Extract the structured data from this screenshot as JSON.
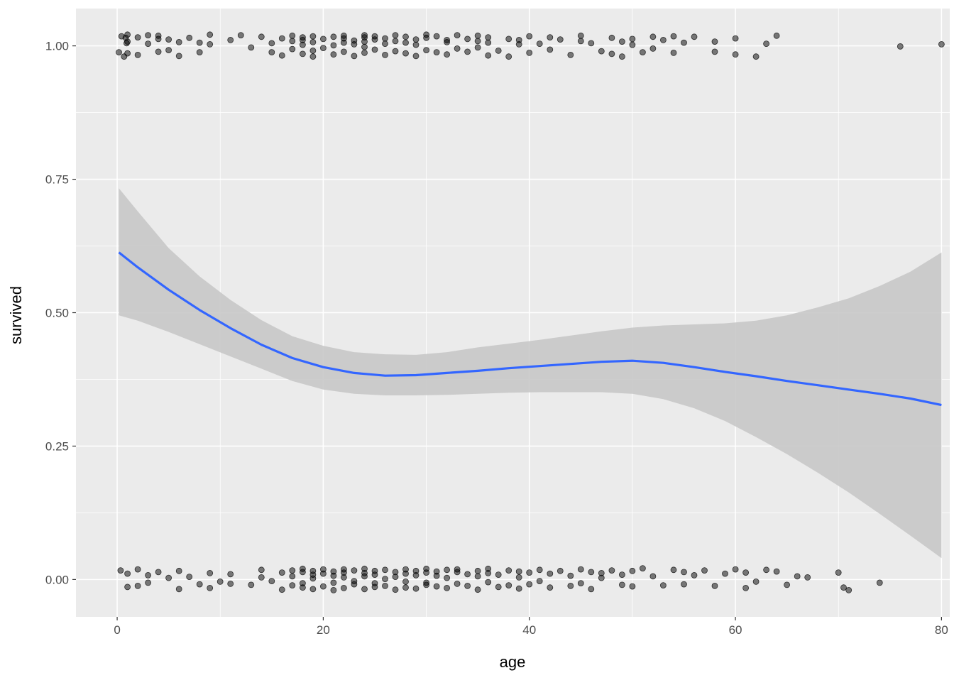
{
  "chart_data": {
    "type": "scatter",
    "title": "",
    "xlabel": "age",
    "ylabel": "survived",
    "xlim": [
      -4,
      80.8
    ],
    "ylim": [
      -0.07,
      1.07
    ],
    "x_ticks": [
      0,
      20,
      40,
      60,
      80
    ],
    "x_tick_labels": [
      "0",
      "20",
      "40",
      "60",
      "80"
    ],
    "y_ticks": [
      0,
      0.25,
      0.5,
      0.75,
      1
    ],
    "y_tick_labels": [
      "0.00",
      "0.25",
      "0.50",
      "0.75",
      "1.00"
    ],
    "grid": true,
    "legend": "none",
    "colors": {
      "panel_background": "#ebebeb",
      "grid": "#ffffff",
      "points": "#000000",
      "smooth_line": "#3366ff",
      "confidence_band": "#c8c8c8"
    },
    "points_survived_1": {
      "y": 1,
      "ages": [
        0.17,
        0.42,
        0.67,
        0.83,
        0.92,
        1,
        1,
        1,
        2,
        2,
        3,
        3,
        4,
        4,
        4,
        5,
        5,
        6,
        6,
        7,
        8,
        8,
        9,
        9,
        11,
        12,
        13,
        14,
        15,
        15,
        16,
        16,
        17,
        17,
        17,
        18,
        18,
        18,
        18,
        19,
        19,
        19,
        19,
        20,
        20,
        21,
        21,
        21,
        22,
        22,
        22,
        22,
        23,
        23,
        23,
        24,
        24,
        24,
        24,
        24,
        25,
        25,
        25,
        26,
        26,
        26,
        27,
        27,
        27,
        28,
        28,
        28,
        29,
        29,
        29,
        30,
        30,
        30,
        31,
        31,
        32,
        32,
        32,
        33,
        33,
        34,
        34,
        35,
        35,
        35,
        36,
        36,
        36,
        37,
        38,
        38,
        39,
        39,
        40,
        40,
        41,
        42,
        42,
        43,
        44,
        45,
        45,
        46,
        47,
        48,
        48,
        49,
        49,
        50,
        50,
        51,
        52,
        52,
        53,
        54,
        54,
        55,
        56,
        58,
        58,
        60,
        60,
        62,
        63,
        64,
        76,
        80
      ],
      "jitter": [
        -0.012,
        0.018,
        -0.02,
        0.015,
        0.005,
        0.021,
        -0.014,
        0.008,
        0.016,
        -0.017,
        0.004,
        0.02,
        -0.011,
        0.013,
        0.019,
        -0.008,
        0.012,
        0.007,
        -0.019,
        0.015,
        0.006,
        -0.012,
        0.021,
        0.003,
        0.011,
        0.02,
        -0.003,
        0.017,
        -0.012,
        0.005,
        0.014,
        -0.018,
        0.009,
        -0.006,
        0.019,
        0.016,
        -0.015,
        0.002,
        0.011,
        -0.009,
        0.018,
        0.007,
        -0.02,
        0.013,
        -0.004,
        0.017,
        0.001,
        -0.016,
        0.019,
        -0.011,
        0.006,
        0.014,
        -0.019,
        0.01,
        0.003,
        0.016,
        -0.013,
        0.008,
        -0.002,
        0.02,
        -0.007,
        0.012,
        0.018,
        0.004,
        -0.017,
        0.014,
        0.009,
        -0.01,
        0.02,
        -0.014,
        0.006,
        0.017,
        0.002,
        -0.019,
        0.012,
        0.015,
        -0.008,
        0.021,
        -0.012,
        0.018,
        0.007,
        -0.016,
        0.011,
        -0.005,
        0.02,
        0.013,
        -0.011,
        0.019,
        -0.003,
        0.009,
        -0.018,
        0.006,
        0.016,
        -0.009,
        0.013,
        -0.02,
        0.003,
        0.011,
        -0.013,
        0.018,
        0.004,
        -0.007,
        0.016,
        0.012,
        -0.017,
        0.009,
        0.019,
        0.005,
        -0.01,
        0.015,
        -0.015,
        0.008,
        -0.02,
        0.013,
        0.002,
        -0.012,
        0.017,
        -0.005,
        0.011,
        0.018,
        -0.013,
        0.006,
        0.017,
        -0.011,
        0.008,
        -0.016,
        0.014,
        -0.02,
        0.004,
        0.019,
        -0.001,
        0.003
      ]
    },
    "points_survived_0": {
      "y": 0,
      "ages": [
        0.33,
        1,
        1,
        2,
        2,
        3,
        3,
        4,
        5,
        6,
        6,
        7,
        8,
        9,
        9,
        10,
        11,
        11,
        13,
        14,
        14,
        15,
        16,
        16,
        17,
        17,
        17,
        18,
        18,
        18,
        18,
        19,
        19,
        19,
        19,
        20,
        20,
        20,
        21,
        21,
        21,
        21,
        22,
        22,
        22,
        22,
        23,
        23,
        23,
        24,
        24,
        24,
        24,
        25,
        25,
        25,
        25,
        26,
        26,
        26,
        27,
        27,
        27,
        28,
        28,
        28,
        28,
        29,
        29,
        29,
        30,
        30,
        30,
        30,
        31,
        31,
        31,
        32,
        32,
        32,
        33,
        33,
        33,
        34,
        34,
        35,
        35,
        35,
        36,
        36,
        36,
        37,
        37,
        38,
        38,
        39,
        39,
        39,
        40,
        40,
        41,
        41,
        42,
        42,
        43,
        44,
        44,
        45,
        45,
        46,
        46,
        47,
        47,
        48,
        49,
        49,
        50,
        50,
        51,
        52,
        53,
        54,
        55,
        55,
        56,
        57,
        58,
        59,
        60,
        61,
        61,
        62,
        63,
        64,
        65,
        66,
        67,
        70,
        70.5,
        71,
        74
      ],
      "jitter": [
        0.017,
        -0.014,
        0.011,
        0.019,
        -0.012,
        0.008,
        -0.006,
        0.014,
        0.003,
        0.016,
        -0.018,
        0.005,
        -0.009,
        0.012,
        -0.016,
        -0.004,
        0.01,
        -0.008,
        -0.01,
        0.004,
        0.018,
        -0.003,
        0.013,
        -0.019,
        0.017,
        -0.011,
        0.006,
        0.014,
        -0.007,
        0.02,
        -0.015,
        0.009,
        -0.018,
        0.002,
        0.016,
        -0.013,
        0.011,
        0.019,
        -0.006,
        0.015,
        -0.02,
        0.007,
        0.013,
        -0.016,
        0.004,
        0.019,
        -0.009,
        0.017,
        -0.003,
        0.012,
        -0.018,
        0.006,
        0.02,
        -0.014,
        0.009,
        0.016,
        -0.007,
        0.001,
        0.018,
        -0.012,
        0.014,
        -0.019,
        0.005,
        0.011,
        -0.015,
        0.019,
        -0.004,
        0.008,
        -0.017,
        0.016,
        0.013,
        -0.01,
        0.02,
        -0.006,
        0.015,
        -0.013,
        0.007,
        0.018,
        -0.016,
        0.003,
        -0.008,
        0.014,
        0.019,
        -0.012,
        0.01,
        0.016,
        -0.019,
        0.006,
        0.012,
        -0.005,
        0.02,
        -0.014,
        0.009,
        0.017,
        -0.011,
        0.015,
        -0.017,
        0.004,
        0.013,
        -0.009,
        0.018,
        -0.003,
        0.011,
        -0.015,
        0.016,
        0.007,
        -0.012,
        0.019,
        -0.007,
        0.014,
        -0.018,
        0.012,
        0.003,
        0.017,
        -0.01,
        0.009,
        0.016,
        -0.013,
        0.021,
        0.006,
        -0.011,
        0.018,
        -0.009,
        0.014,
        0.008,
        0.017,
        -0.012,
        0.011,
        0.019,
        -0.016,
        0.013,
        -0.004,
        0.018,
        0.015,
        -0.01,
        0.006,
        0.004,
        0.013,
        -0.015,
        -0.02,
        -0.006
      ]
    },
    "smooth_line": {
      "x": [
        0.17,
        2,
        5,
        8,
        11,
        14,
        17,
        20,
        23,
        26,
        29,
        32,
        35,
        38,
        41,
        44,
        47,
        50,
        53,
        56,
        59,
        62,
        65,
        68,
        71,
        74,
        77,
        80
      ],
      "y": [
        0.613,
        0.585,
        0.543,
        0.505,
        0.471,
        0.44,
        0.415,
        0.398,
        0.387,
        0.382,
        0.383,
        0.387,
        0.391,
        0.396,
        0.4,
        0.404,
        0.408,
        0.41,
        0.406,
        0.398,
        0.389,
        0.381,
        0.372,
        0.364,
        0.356,
        0.348,
        0.339,
        0.327
      ]
    },
    "confidence_band": {
      "x": [
        0.17,
        2,
        5,
        8,
        11,
        14,
        17,
        20,
        23,
        26,
        29,
        32,
        35,
        38,
        41,
        44,
        47,
        50,
        53,
        56,
        59,
        62,
        65,
        68,
        71,
        74,
        77,
        80
      ],
      "lower": [
        0.495,
        0.485,
        0.464,
        0.441,
        0.418,
        0.395,
        0.372,
        0.356,
        0.348,
        0.345,
        0.345,
        0.346,
        0.348,
        0.35,
        0.351,
        0.351,
        0.351,
        0.348,
        0.338,
        0.321,
        0.297,
        0.267,
        0.235,
        0.2,
        0.163,
        0.123,
        0.082,
        0.04
      ],
      "upper": [
        0.733,
        0.69,
        0.621,
        0.568,
        0.524,
        0.486,
        0.456,
        0.438,
        0.426,
        0.422,
        0.421,
        0.426,
        0.435,
        0.442,
        0.449,
        0.457,
        0.465,
        0.472,
        0.476,
        0.478,
        0.48,
        0.485,
        0.495,
        0.51,
        0.527,
        0.55,
        0.577,
        0.613
      ]
    }
  }
}
